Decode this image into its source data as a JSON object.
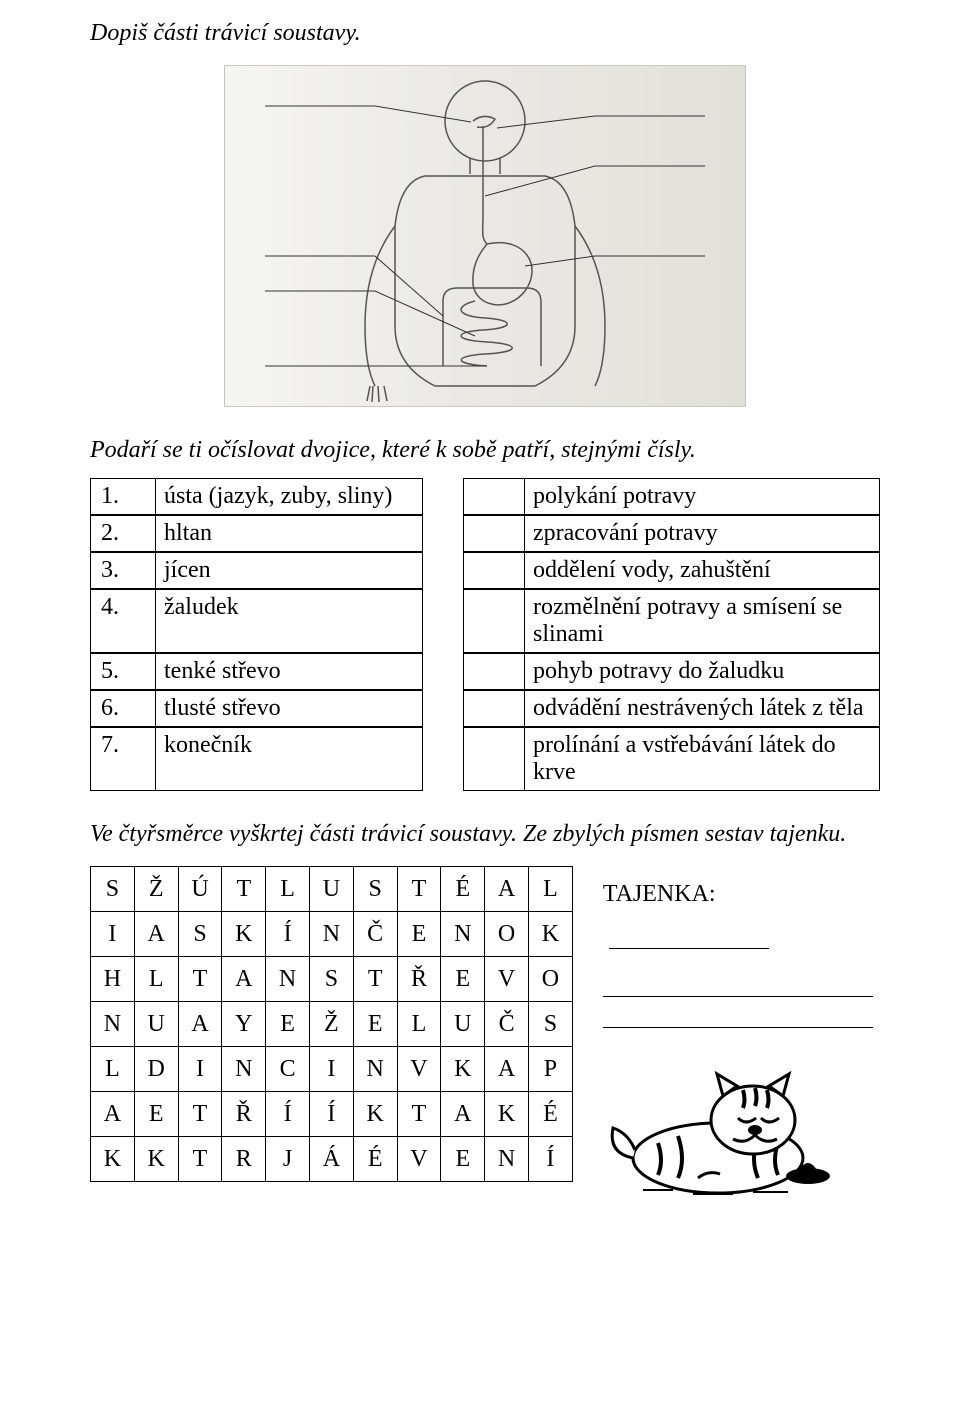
{
  "heading": "Dopiš části trávicí soustavy.",
  "subheading": "Podaří se ti očíslovat dvojice, které k sobě patří, stejnými čísly.",
  "match": {
    "rows": [
      {
        "num": "1.",
        "term": "ústa (jazyk, zuby, sliny)",
        "def": "polykání potravy"
      },
      {
        "num": "2.",
        "term": "hltan",
        "def": "zpracování potravy"
      },
      {
        "num": "3.",
        "term": "jícen",
        "def": "oddělení vody, zahuštění"
      },
      {
        "num": "4.",
        "term": "žaludek",
        "def": "rozmělnění potravy a smísení se slinami"
      },
      {
        "num": "5.",
        "term": "tenké střevo",
        "def": "pohyb potravy do žaludku"
      },
      {
        "num": "6.",
        "term": "tlusté střevo",
        "def": "odvádění nestrávených látek z těla"
      },
      {
        "num": "7.",
        "term": "konečník",
        "def": "prolínání a vstřebávání látek do krve"
      }
    ]
  },
  "subheading2": "Ve čtyřsměrce vyškrtej části trávicí soustavy. Ze zbylých písmen sestav tajenku.",
  "grid": {
    "rows": [
      [
        "S",
        "Ž",
        "Ú",
        "T",
        "L",
        "U",
        "S",
        "T",
        "É",
        "A",
        "L"
      ],
      [
        "I",
        "A",
        "S",
        "K",
        "Í",
        "N",
        "Č",
        "E",
        "N",
        "O",
        "K"
      ],
      [
        "H",
        "L",
        "T",
        "A",
        "N",
        "S",
        "T",
        "Ř",
        "E",
        "V",
        "O"
      ],
      [
        "N",
        "U",
        "A",
        "Y",
        "E",
        "Ž",
        "E",
        "L",
        "U",
        "Č",
        "S"
      ],
      [
        "L",
        "D",
        "I",
        "N",
        "C",
        "I",
        "N",
        "V",
        "K",
        "A",
        "P"
      ],
      [
        "A",
        "E",
        "T",
        "Ř",
        "Í",
        "Í",
        "K",
        "T",
        "A",
        "K",
        "É"
      ],
      [
        "K",
        "K",
        "T",
        "R",
        "J",
        "Á",
        "É",
        "V",
        "E",
        "N",
        "Í"
      ]
    ]
  },
  "tajenka_label": "TAJENKA:"
}
